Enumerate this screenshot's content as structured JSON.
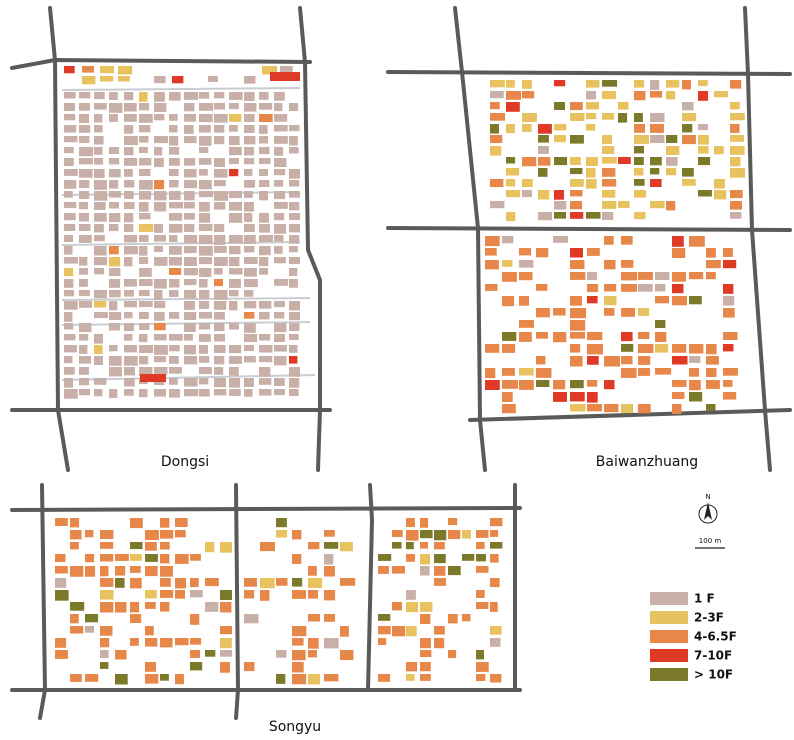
{
  "maps": [
    {
      "label": "Dongsi"
    },
    {
      "label": "Baiwanzhuang"
    },
    {
      "label": "Songyu"
    }
  ],
  "legend": [
    {
      "label": "1 F",
      "color": "#c8afa7"
    },
    {
      "label": "2-3F",
      "color": "#e8c25e"
    },
    {
      "label": "4-6.5F",
      "color": "#e8874a"
    },
    {
      "label": "7-10F",
      "color": "#e03a26"
    },
    {
      "label": "> 10F",
      "color": "#7b7a2a"
    }
  ],
  "scale_bar": {
    "label": "100 m"
  },
  "north_arrow": {
    "label": "N"
  }
}
